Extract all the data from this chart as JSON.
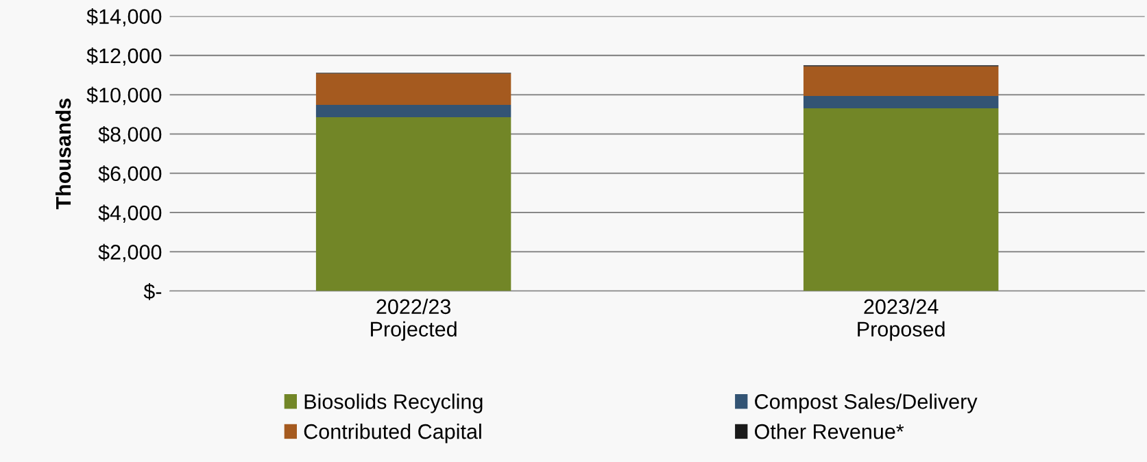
{
  "chart_data": {
    "type": "bar",
    "stacked": true,
    "ylabel": "Thousands",
    "categories": [
      "2022/23\nProjected",
      "2023/24\nProposed"
    ],
    "series": [
      {
        "name": "Biosolids Recycling",
        "color": "#728627",
        "values": [
          8850,
          9310
        ]
      },
      {
        "name": "Compost Sales/Delivery",
        "color": "#335474",
        "values": [
          630,
          630
        ]
      },
      {
        "name": "Contributed Capital",
        "color": "#a55a1f",
        "values": [
          1600,
          1510
        ]
      },
      {
        "name": "Other Revenue*",
        "color": "#1a1a1a",
        "values": [
          30,
          50
        ]
      }
    ],
    "ylim": [
      0,
      14000
    ],
    "yticks": [
      {
        "value": 0,
        "label": "$-"
      },
      {
        "value": 2000,
        "label": "$2,000"
      },
      {
        "value": 4000,
        "label": "$4,000"
      },
      {
        "value": 6000,
        "label": "$6,000"
      },
      {
        "value": 8000,
        "label": "$8,000"
      },
      {
        "value": 10000,
        "label": "$10,000"
      },
      {
        "value": 12000,
        "label": "$12,000"
      },
      {
        "value": 14000,
        "label": "$14,000"
      }
    ],
    "grid": "y",
    "legend": "bottom"
  }
}
